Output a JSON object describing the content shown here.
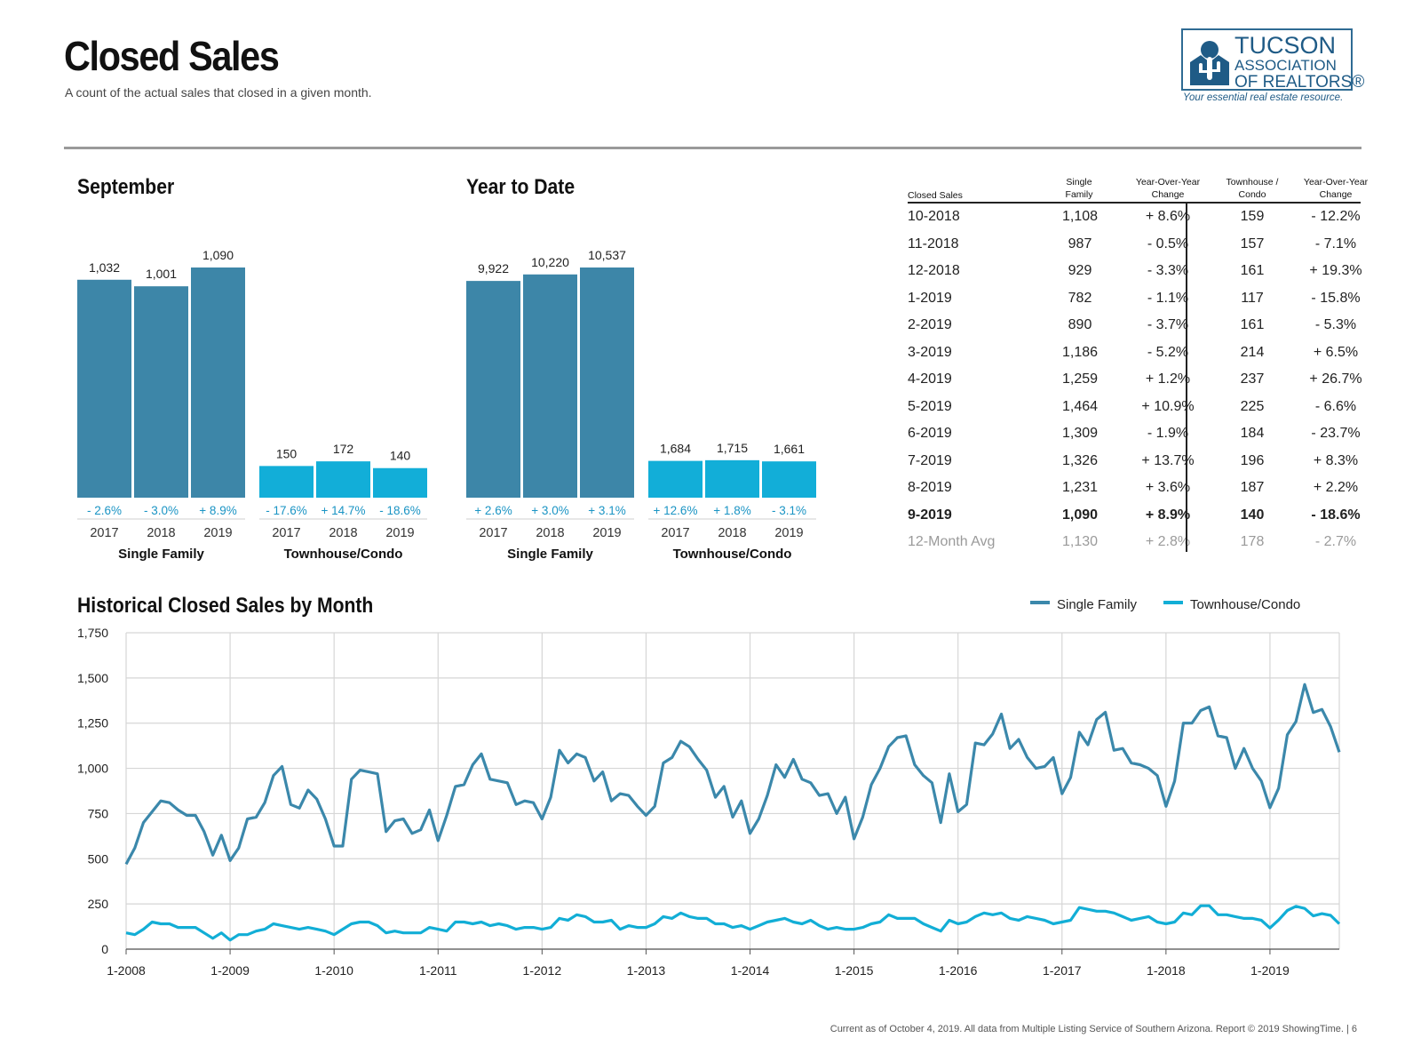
{
  "header": {
    "title": "Closed Sales",
    "subtitle": "A count of the actual sales that closed in a given month."
  },
  "logo": {
    "line1": "TUCSON",
    "line2": "ASSOCIATION",
    "line3": "OF REALTORS®",
    "tagline": "Your essential real estate resource."
  },
  "colors": {
    "single_family": "#3d86a8",
    "townhouse": "#12aed8",
    "single_family_line": "#3b88ab",
    "townhouse_line": "#12aed6"
  },
  "sections": {
    "month": "September",
    "ytd": "Year to Date",
    "history": "Historical Closed Sales by Month"
  },
  "table": {
    "headers": [
      "Closed Sales",
      "Single Family",
      "Year-Over-Year Change",
      "Townhouse / Condo",
      "Year-Over-Year Change"
    ],
    "rows": [
      [
        "10-2018",
        "1,108",
        "+ 8.6%",
        "159",
        "- 12.2%"
      ],
      [
        "11-2018",
        "987",
        "- 0.5%",
        "157",
        "- 7.1%"
      ],
      [
        "12-2018",
        "929",
        "- 3.3%",
        "161",
        "+ 19.3%"
      ],
      [
        "1-2019",
        "782",
        "- 1.1%",
        "117",
        "- 15.8%"
      ],
      [
        "2-2019",
        "890",
        "- 3.7%",
        "161",
        "- 5.3%"
      ],
      [
        "3-2019",
        "1,186",
        "- 5.2%",
        "214",
        "+ 6.5%"
      ],
      [
        "4-2019",
        "1,259",
        "+ 1.2%",
        "237",
        "+ 26.7%"
      ],
      [
        "5-2019",
        "1,464",
        "+ 10.9%",
        "225",
        "- 6.6%"
      ],
      [
        "6-2019",
        "1,309",
        "- 1.9%",
        "184",
        "- 23.7%"
      ],
      [
        "7-2019",
        "1,326",
        "+ 13.7%",
        "196",
        "+ 8.3%"
      ],
      [
        "8-2019",
        "1,231",
        "+ 3.6%",
        "187",
        "+ 2.2%"
      ],
      [
        "9-2019",
        "1,090",
        "+ 8.9%",
        "140",
        "- 18.6%"
      ]
    ],
    "avg_row": [
      "12-Month Avg",
      "1,130",
      "+ 2.8%",
      "178",
      "- 2.7%"
    ]
  },
  "footer": "Current as of October 4, 2019. All data from Multiple Listing Service of Southern Arizona. Report © 2019 ShowingTime.  |  6",
  "chart_data": [
    {
      "type": "bar",
      "title": "September",
      "groups": [
        {
          "name": "Single Family",
          "categories": [
            "2017",
            "2018",
            "2019"
          ],
          "values": [
            1032,
            1001,
            1090
          ],
          "labels": [
            "1,032",
            "1,001",
            "1,090"
          ],
          "changes": [
            "- 2.6%",
            "- 3.0%",
            "+ 8.9%"
          ]
        },
        {
          "name": "Townhouse/Condo",
          "categories": [
            "2017",
            "2018",
            "2019"
          ],
          "values": [
            150,
            172,
            140
          ],
          "labels": [
            "150",
            "172",
            "140"
          ],
          "changes": [
            "- 17.6%",
            "+ 14.7%",
            "- 18.6%"
          ]
        }
      ]
    },
    {
      "type": "bar",
      "title": "Year to Date",
      "groups": [
        {
          "name": "Single Family",
          "categories": [
            "2017",
            "2018",
            "2019"
          ],
          "values": [
            9922,
            10220,
            10537
          ],
          "labels": [
            "9,922",
            "10,220",
            "10,537"
          ],
          "changes": [
            "+ 2.6%",
            "+ 3.0%",
            "+ 3.1%"
          ]
        },
        {
          "name": "Townhouse/Condo",
          "categories": [
            "2017",
            "2018",
            "2019"
          ],
          "values": [
            1684,
            1715,
            1661
          ],
          "labels": [
            "1,684",
            "1,715",
            "1,661"
          ],
          "changes": [
            "+ 12.6%",
            "+ 1.8%",
            "- 3.1%"
          ]
        }
      ]
    },
    {
      "type": "line",
      "title": "Historical Closed Sales by Month",
      "ylim": [
        0,
        1750
      ],
      "yticks": [
        0,
        250,
        500,
        750,
        1000,
        1250,
        1500,
        1750
      ],
      "ytick_labels": [
        "0",
        "250",
        "500",
        "750",
        "1,000",
        "1,250",
        "1,500",
        "1,750"
      ],
      "xtick_labels": [
        "1-2008",
        "1-2009",
        "1-2010",
        "1-2011",
        "1-2012",
        "1-2013",
        "1-2014",
        "1-2015",
        "1-2016",
        "1-2017",
        "1-2018",
        "1-2019"
      ],
      "x_start": "1-2008",
      "x_end": "9-2019",
      "legend": "top-right",
      "grid": true,
      "series": [
        {
          "name": "Single Family",
          "values": [
            470,
            560,
            700,
            760,
            820,
            810,
            770,
            740,
            740,
            650,
            520,
            630,
            490,
            560,
            720,
            730,
            810,
            960,
            1010,
            800,
            780,
            880,
            830,
            720,
            570,
            570,
            940,
            990,
            980,
            970,
            650,
            710,
            720,
            640,
            660,
            770,
            600,
            740,
            900,
            910,
            1020,
            1080,
            940,
            930,
            920,
            800,
            820,
            810,
            720,
            840,
            1100,
            1030,
            1080,
            1060,
            930,
            980,
            820,
            860,
            850,
            790,
            740,
            790,
            1030,
            1060,
            1150,
            1120,
            1050,
            990,
            840,
            900,
            730,
            820,
            640,
            720,
            850,
            1020,
            950,
            1050,
            940,
            920,
            850,
            860,
            750,
            840,
            610,
            730,
            910,
            1000,
            1120,
            1170,
            1180,
            1020,
            960,
            920,
            700,
            970,
            760,
            800,
            1140,
            1130,
            1190,
            1300,
            1110,
            1160,
            1060,
            1000,
            1010,
            1060,
            860,
            950,
            1200,
            1130,
            1270,
            1310,
            1100,
            1110,
            1030,
            1020,
            1000,
            960,
            790,
            930,
            1250,
            1250,
            1320,
            1340,
            1180,
            1170,
            1000,
            1110,
            1000,
            930,
            782,
            890,
            1186,
            1259,
            1464,
            1309,
            1326,
            1231,
            1090
          ]
        },
        {
          "name": "Townhouse/Condo",
          "values": [
            90,
            80,
            110,
            150,
            140,
            140,
            120,
            120,
            120,
            90,
            60,
            90,
            50,
            80,
            80,
            100,
            110,
            140,
            130,
            120,
            110,
            120,
            110,
            100,
            80,
            110,
            140,
            150,
            150,
            130,
            90,
            100,
            90,
            90,
            90,
            120,
            110,
            100,
            150,
            150,
            140,
            150,
            130,
            140,
            130,
            110,
            120,
            120,
            110,
            120,
            170,
            160,
            190,
            180,
            150,
            150,
            160,
            110,
            130,
            120,
            120,
            140,
            180,
            170,
            200,
            180,
            170,
            170,
            140,
            140,
            120,
            130,
            110,
            130,
            150,
            160,
            170,
            150,
            140,
            160,
            130,
            110,
            120,
            110,
            110,
            120,
            140,
            150,
            190,
            170,
            170,
            170,
            140,
            120,
            100,
            160,
            140,
            150,
            180,
            200,
            190,
            200,
            170,
            160,
            180,
            170,
            160,
            140,
            150,
            160,
            230,
            220,
            210,
            210,
            200,
            180,
            160,
            170,
            180,
            150,
            140,
            150,
            200,
            190,
            240,
            240,
            190,
            190,
            180,
            170,
            170,
            160,
            117,
            161,
            214,
            237,
            225,
            184,
            196,
            187,
            140
          ]
        }
      ]
    }
  ]
}
